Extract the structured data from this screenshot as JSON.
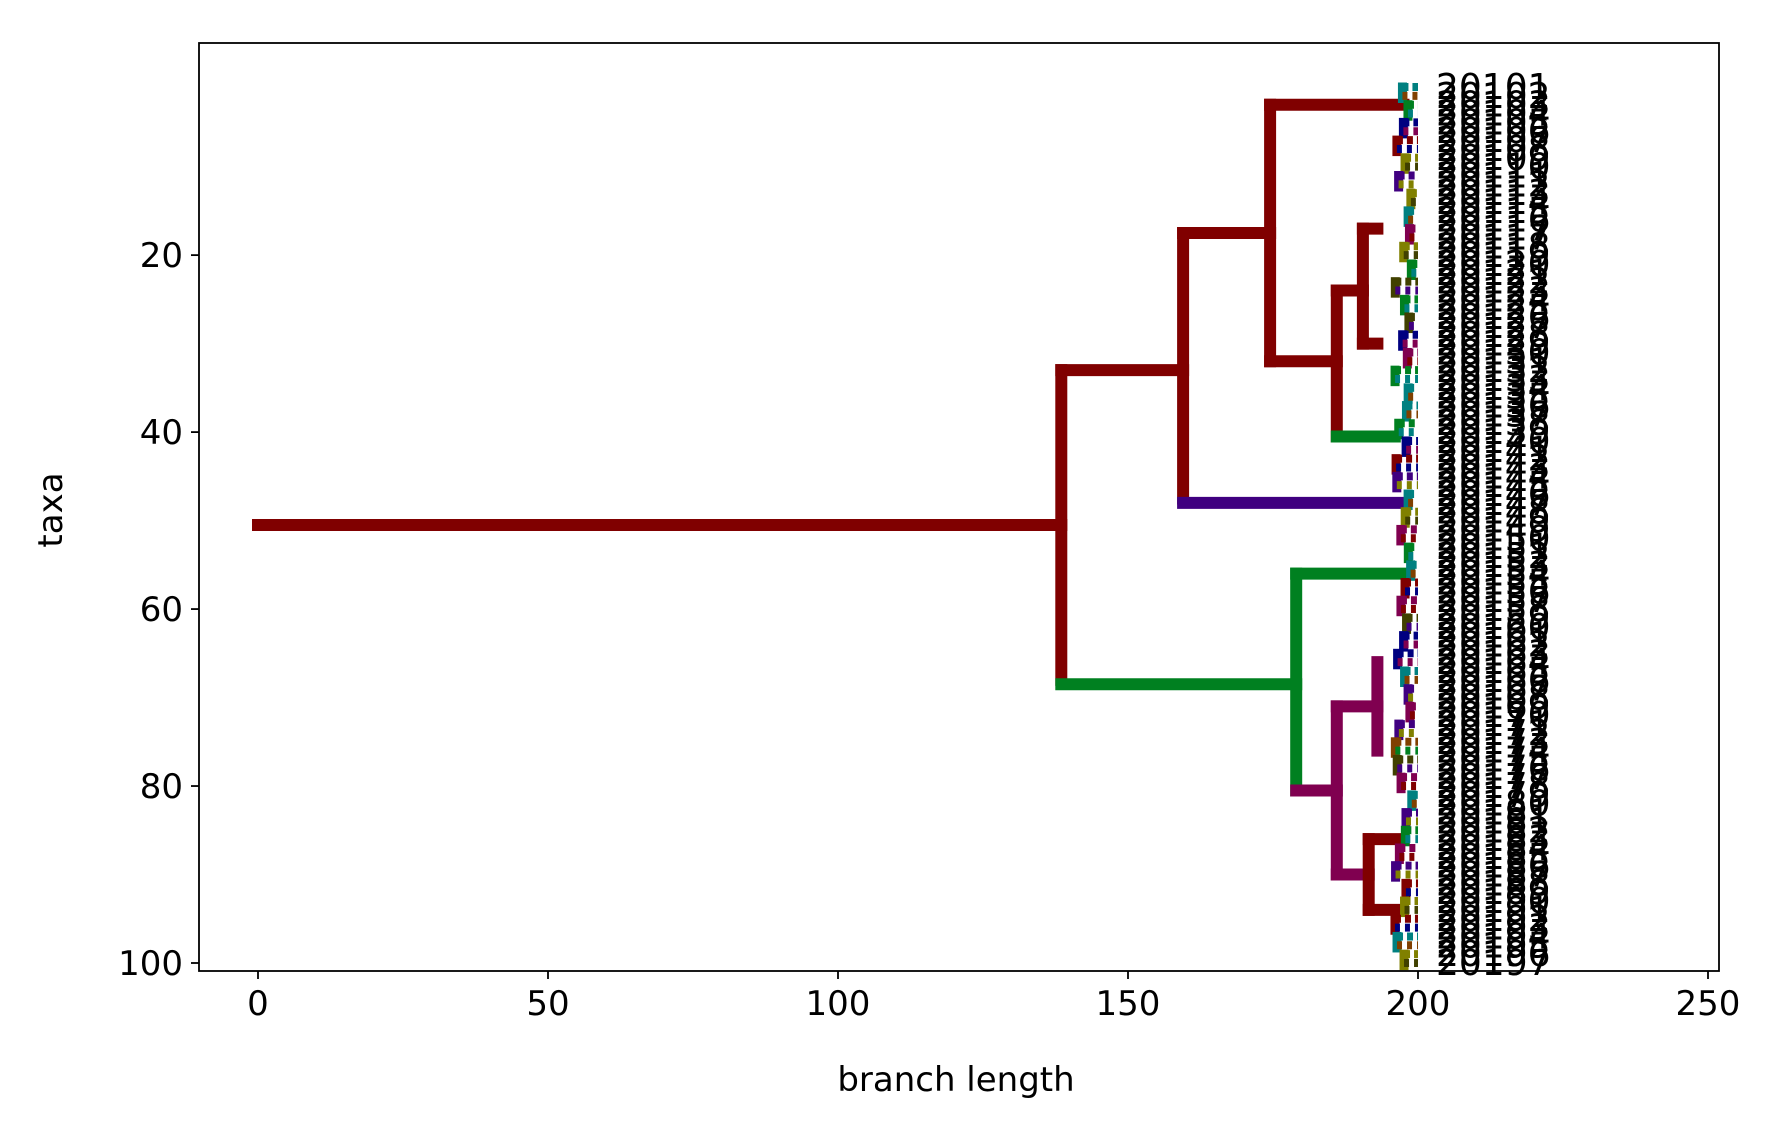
{
  "chart_data": {
    "type": "dendrogram",
    "title": "",
    "xlabel": "branch length",
    "ylabel": "taxa",
    "xlim": [
      -10,
      252
    ],
    "ylim": [
      101,
      0
    ],
    "x_ticks": [
      0,
      50,
      100,
      150,
      200,
      250
    ],
    "y_ticks": [
      20,
      40,
      60,
      80,
      100
    ],
    "leaf_x": 200,
    "leaf_label_first": "20101",
    "leaf_label_last": "20197",
    "branches": [
      {
        "from_x": 0,
        "to_x": 138.5,
        "y": 50.5,
        "color": "#800000"
      },
      {
        "x": 138.5,
        "y1": 33,
        "y2": 68,
        "color": "#800000"
      },
      {
        "from_x": 138.5,
        "to_x": 159.5,
        "y": 33,
        "color": "#800000"
      },
      {
        "from_x": 138.5,
        "to_x": 179,
        "y": 68.5,
        "color": "#008020"
      },
      {
        "x": 159.5,
        "y1": 17.5,
        "y2": 47.5,
        "color": "#800000"
      },
      {
        "from_x": 159.5,
        "to_x": 174.5,
        "y": 17.5,
        "color": "#800000"
      },
      {
        "from_x": 159.5,
        "to_x": 197.5,
        "y": 48,
        "color": "#400080"
      },
      {
        "x": 174.5,
        "y1": 3,
        "y2": 32,
        "color": "#800000"
      },
      {
        "from_x": 174.5,
        "to_x": 197.5,
        "y": 3,
        "color": "#800000"
      },
      {
        "from_x": 174.5,
        "to_x": 186,
        "y": 32,
        "color": "#800000"
      },
      {
        "x": 186,
        "y1": 24,
        "y2": 40.5,
        "color": "#800000"
      },
      {
        "from_x": 186,
        "to_x": 190.5,
        "y": 24,
        "color": "#800000"
      },
      {
        "from_x": 186,
        "to_x": 196,
        "y": 40.5,
        "color": "#008020"
      },
      {
        "x": 190.5,
        "y1": 17,
        "y2": 30,
        "color": "#800000"
      },
      {
        "from_x": 190.5,
        "to_x": 193,
        "y": 17,
        "color": "#800000"
      },
      {
        "from_x": 190.5,
        "to_x": 193,
        "y": 30,
        "color": "#800000"
      },
      {
        "x": 179,
        "y1": 56,
        "y2": 80.5,
        "color": "#008020"
      },
      {
        "from_x": 179,
        "to_x": 197.5,
        "y": 56,
        "color": "#008020"
      },
      {
        "from_x": 179,
        "to_x": 186,
        "y": 80.5,
        "color": "#800050"
      },
      {
        "x": 186,
        "y1": 71,
        "y2": 90,
        "color": "#800050"
      },
      {
        "from_x": 186,
        "to_x": 193,
        "y": 71,
        "color": "#800050"
      },
      {
        "from_x": 186,
        "to_x": 191.5,
        "y": 90,
        "color": "#800050"
      },
      {
        "x": 193,
        "y1": 66,
        "y2": 76,
        "color": "#800050"
      },
      {
        "x": 191.5,
        "y1": 86,
        "y2": 94,
        "color": "#800000"
      },
      {
        "from_x": 191.5,
        "to_x": 197.5,
        "y": 86,
        "color": "#800000"
      },
      {
        "from_x": 191.5,
        "to_x": 196,
        "y": 94,
        "color": "#800000"
      }
    ],
    "cluster_colors": [
      "#800000",
      "#008020",
      "#400080",
      "#000080",
      "#008080",
      "#808000",
      "#800050",
      "#804000",
      "#404000"
    ]
  }
}
